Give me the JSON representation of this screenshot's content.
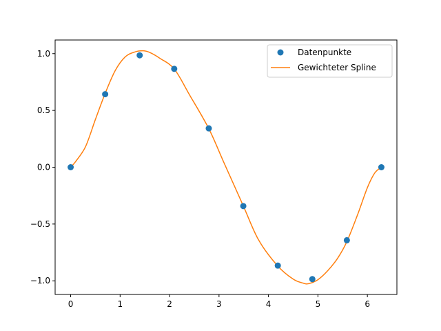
{
  "chart_data": {
    "type": "line",
    "title": "",
    "xlabel": "",
    "ylabel": "",
    "xlim": [
      -0.314,
      6.597
    ],
    "ylim": [
      -1.12,
      1.12
    ],
    "x_ticks": [
      0,
      1,
      2,
      3,
      4,
      5,
      6
    ],
    "x_tick_labels": [
      "0",
      "1",
      "2",
      "3",
      "4",
      "5",
      "6"
    ],
    "y_ticks": [
      -1.0,
      -0.5,
      0.0,
      0.5,
      1.0
    ],
    "y_tick_labels": [
      "−1.0",
      "−0.5",
      "0.0",
      "0.5",
      "1.0"
    ],
    "grid": false,
    "legend_position": "top-right",
    "series": [
      {
        "name": "Datenpunkte",
        "kind": "scatter",
        "color": "#1f77b4",
        "x": [
          0.0,
          0.698,
          1.396,
          2.094,
          2.793,
          3.491,
          4.189,
          4.887,
          5.585,
          6.283
        ],
        "y": [
          0.0,
          0.643,
          0.985,
          0.866,
          0.342,
          -0.342,
          -0.866,
          -0.985,
          -0.643,
          0.0
        ]
      },
      {
        "name": "Gewichteter Spline",
        "kind": "line",
        "color": "#ff7f0e",
        "x": [
          0.0,
          0.1,
          0.3,
          0.5,
          0.698,
          0.9,
          1.1,
          1.3,
          1.47,
          1.6,
          1.8,
          2.094,
          2.4,
          2.793,
          3.1,
          3.491,
          3.8,
          4.189,
          4.5,
          4.7,
          4.81,
          5.0,
          5.2,
          5.4,
          5.585,
          5.8,
          6.0,
          6.15,
          6.283
        ],
        "y": [
          0.0,
          0.05,
          0.18,
          0.42,
          0.65,
          0.85,
          0.97,
          1.015,
          1.025,
          1.01,
          0.96,
          0.865,
          0.64,
          0.34,
          0.04,
          -0.34,
          -0.64,
          -0.87,
          -0.985,
          -1.02,
          -1.025,
          -0.99,
          -0.91,
          -0.8,
          -0.655,
          -0.42,
          -0.18,
          -0.05,
          0.0
        ]
      }
    ]
  }
}
